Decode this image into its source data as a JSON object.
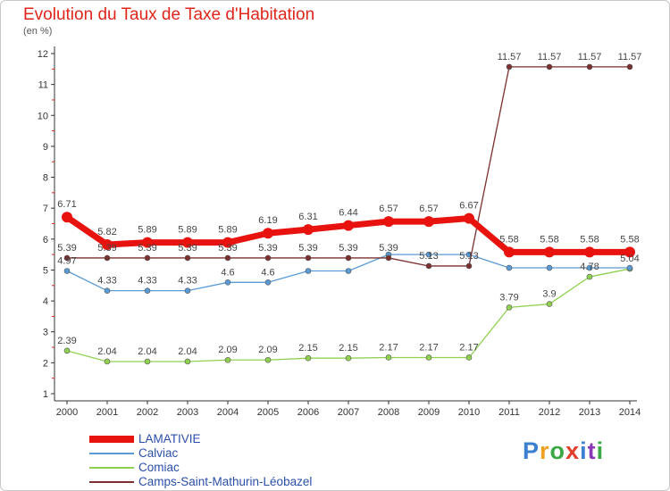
{
  "chart_data": {
    "type": "line",
    "title": "Evolution du Taux de Taxe d'Habitation",
    "subtitle": "(en %)",
    "x": [
      "2000",
      "2001",
      "2002",
      "2003",
      "2004",
      "2005",
      "2006",
      "2007",
      "2008",
      "2009",
      "2010",
      "2011",
      "2012",
      "2013",
      "2014"
    ],
    "ylim": [
      1,
      12
    ],
    "yticks": [
      1,
      2,
      3,
      4,
      5,
      6,
      7,
      8,
      9,
      10,
      11,
      12
    ],
    "grid": false,
    "legend_position": "bottom-left",
    "series": [
      {
        "name": "LAMATIVIE",
        "color": "#e8130f",
        "values": [
          6.71,
          5.82,
          5.89,
          5.89,
          5.89,
          6.19,
          6.31,
          6.44,
          6.57,
          6.57,
          6.67,
          5.58,
          5.58,
          5.58,
          5.58
        ],
        "labels": [
          "6.71",
          "5.82",
          "5.89",
          "5.89",
          "5.89",
          "6.19",
          "6.31",
          "6.44",
          "6.57",
          "6.57",
          "6.67",
          "5.58",
          "5.58",
          "5.58",
          "5.58"
        ]
      },
      {
        "name": "Calviac",
        "color": "#5b9bd5",
        "values": [
          4.97,
          4.33,
          4.33,
          4.33,
          4.6,
          4.6,
          4.97,
          4.97,
          5.5,
          5.5,
          5.5,
          5.07,
          5.07,
          5.07,
          5.07
        ],
        "labels": [
          "4.97",
          "4.33",
          "4.33",
          "4.33",
          "4.6",
          "4.6",
          "",
          "",
          "",
          "",
          "",
          "",
          "",
          "",
          ""
        ]
      },
      {
        "name": "Comiac",
        "color": "#8fd14f",
        "values": [
          2.39,
          2.04,
          2.04,
          2.04,
          2.09,
          2.09,
          2.15,
          2.15,
          2.17,
          2.17,
          2.17,
          3.79,
          3.9,
          4.78,
          5.04
        ],
        "labels": [
          "2.39",
          "2.04",
          "2.04",
          "2.04",
          "2.09",
          "2.09",
          "2.15",
          "2.15",
          "2.17",
          "2.17",
          "2.17",
          "3.79",
          "3.9",
          "4.78",
          "5.04"
        ]
      },
      {
        "name": "Camps-Saint-Mathurin-Léobazel",
        "color": "#7b2f2f",
        "values": [
          5.39,
          5.39,
          5.39,
          5.39,
          5.39,
          5.39,
          5.39,
          5.39,
          5.39,
          5.13,
          5.13,
          11.57,
          11.57,
          11.57,
          11.57
        ],
        "labels": [
          "5.39",
          "5.39",
          "5.39",
          "5.39",
          "5.39",
          "5.39",
          "5.39",
          "5.39",
          "5.39",
          "5.13",
          "5.13",
          "11.57",
          "11.57",
          "11.57",
          "11.57"
        ]
      }
    ]
  },
  "logo": {
    "text": "Proxiti"
  }
}
